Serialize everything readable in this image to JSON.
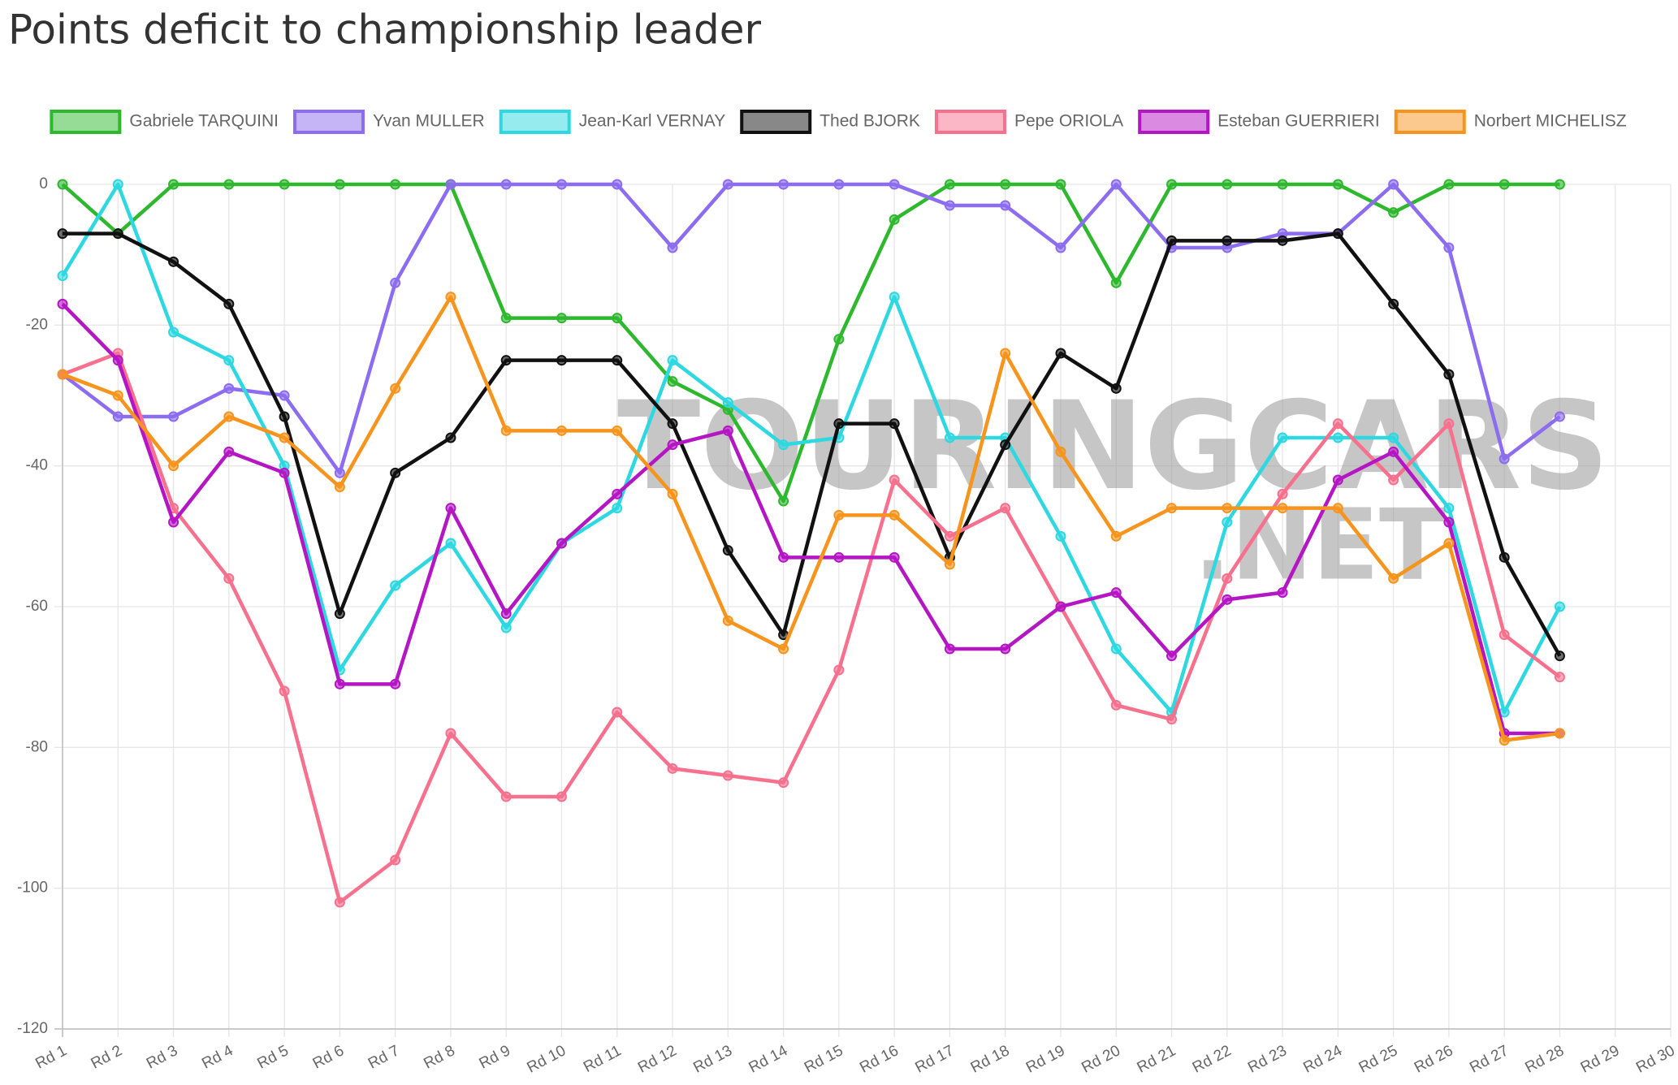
{
  "chart_data": {
    "type": "line",
    "title": "Points deficit to championship leader",
    "watermark": [
      "TOURINGCARS",
      ".NET"
    ],
    "categories": [
      "Rd 1",
      "Rd 2",
      "Rd 3",
      "Rd 4",
      "Rd 5",
      "Rd 6",
      "Rd 7",
      "Rd 8",
      "Rd 9",
      "Rd 10",
      "Rd 11",
      "Rd 12",
      "Rd 13",
      "Rd 14",
      "Rd 15",
      "Rd 16",
      "Rd 17",
      "Rd 18",
      "Rd 19",
      "Rd 20",
      "Rd 21",
      "Rd 22",
      "Rd 23",
      "Rd 24",
      "Rd 25",
      "Rd 26",
      "Rd 27",
      "Rd 28",
      "Rd 29",
      "Rd 30"
    ],
    "ylim": [
      -120,
      0
    ],
    "yticks": [
      0,
      -20,
      -40,
      -60,
      -80,
      -100,
      -120
    ],
    "grid": true,
    "legend": "top",
    "series": [
      {
        "name": "Gabriele TARQUINI",
        "color": "#2eb82e",
        "values": [
          0,
          -7,
          0,
          0,
          0,
          0,
          0,
          0,
          -19,
          -19,
          -19,
          -28,
          -32,
          -45,
          -22,
          -5,
          0,
          0,
          0,
          -14,
          0,
          0,
          0,
          0,
          -4,
          0,
          0,
          0,
          null,
          null
        ]
      },
      {
        "name": "Yvan MULLER",
        "color": "#8c6cf0",
        "values": [
          -27,
          -33,
          -33,
          -29,
          -30,
          -41,
          -14,
          0,
          0,
          0,
          0,
          -9,
          0,
          0,
          0,
          0,
          -3,
          -3,
          -9,
          0,
          -9,
          -9,
          -7,
          -7,
          0,
          -9,
          -39,
          -33,
          null,
          null
        ]
      },
      {
        "name": "Jean-Karl VERNAY",
        "color": "#2ed8e0",
        "values": [
          -13,
          0,
          -21,
          -25,
          -40,
          -69,
          -57,
          -51,
          -63,
          -51,
          -46,
          -25,
          -31,
          -37,
          -36,
          -16,
          -36,
          -36,
          -50,
          -66,
          -75,
          -48,
          -36,
          -36,
          -36,
          -46,
          -75,
          -60,
          null,
          null
        ]
      },
      {
        "name": "Thed BJORK",
        "color": "#111111",
        "values": [
          -7,
          -7,
          -11,
          -17,
          -33,
          -61,
          -41,
          -36,
          -25,
          -25,
          -25,
          -34,
          -52,
          -64,
          -34,
          -34,
          -53,
          -37,
          -24,
          -29,
          -8,
          -8,
          -8,
          -7,
          -17,
          -27,
          -53,
          -67,
          null,
          null
        ]
      },
      {
        "name": "Pepe ORIOLA",
        "color": "#f7708d",
        "values": [
          -27,
          -24,
          -46,
          -56,
          -72,
          -102,
          -96,
          -78,
          -87,
          -87,
          -75,
          -83,
          -84,
          -85,
          -69,
          -42,
          -50,
          -46,
          -60,
          -74,
          -76,
          -56,
          -44,
          -34,
          -42,
          -34,
          -64,
          -70,
          null,
          null
        ]
      },
      {
        "name": "Esteban GUERRIERI",
        "color": "#b516c4",
        "values": [
          -17,
          -25,
          -48,
          -38,
          -41,
          -71,
          -71,
          -46,
          -61,
          -51,
          -44,
          -37,
          -35,
          -53,
          -53,
          -53,
          -66,
          -66,
          -60,
          -58,
          -67,
          -59,
          -58,
          -42,
          -38,
          -48,
          -78,
          -78,
          null,
          null
        ]
      },
      {
        "name": "Norbert MICHELISZ",
        "color": "#f7941d",
        "values": [
          -27,
          -30,
          -40,
          -33,
          -36,
          -43,
          -29,
          -16,
          -35,
          -35,
          -35,
          -44,
          -62,
          -66,
          -47,
          -47,
          -54,
          -24,
          -38,
          -50,
          -46,
          -46,
          -46,
          -46,
          -56,
          -51,
          -79,
          -78,
          null,
          null
        ]
      }
    ]
  }
}
